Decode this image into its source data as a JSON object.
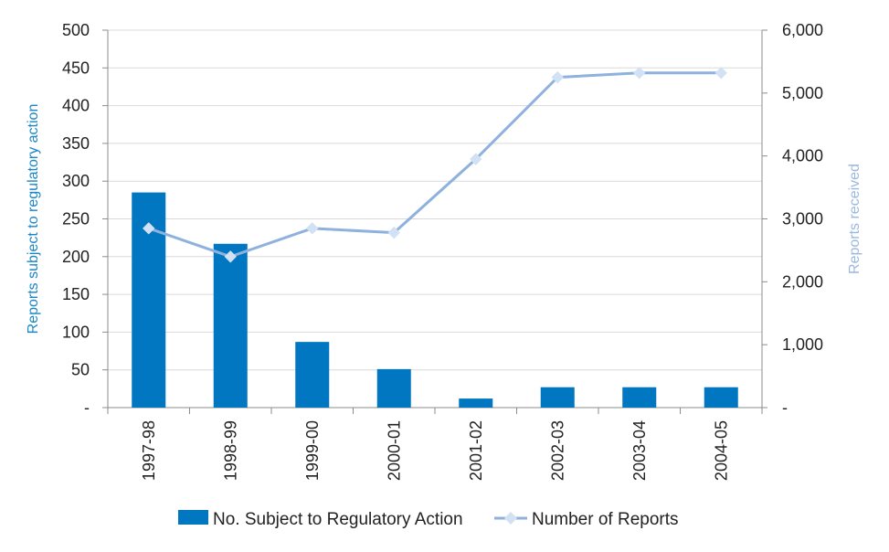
{
  "chart_data": {
    "type": "bar",
    "categories": [
      "1997-98",
      "1998-99",
      "1999-00",
      "2000-01",
      "2001-02",
      "2002-03",
      "2003-04",
      "2004-05"
    ],
    "series": [
      {
        "name": "No. Subject to Regulatory Action",
        "type": "bar",
        "axis": "left",
        "color": "#0077c0",
        "values": [
          285,
          217,
          87,
          51,
          12,
          27,
          27,
          27
        ]
      },
      {
        "name": "Number of Reports",
        "type": "line",
        "axis": "right",
        "color": "#8eb2dd",
        "marker_color": "#d3e1f4",
        "values": [
          2850,
          2400,
          2850,
          2780,
          3950,
          5250,
          5320,
          5320
        ]
      }
    ],
    "ylabel": "Reports subject to regulatory action",
    "ylabel_color": "#1a86c7",
    "ylim": [
      0,
      500
    ],
    "yticks": [
      {
        "value": 0,
        "label": "-"
      },
      {
        "value": 50,
        "label": "50"
      },
      {
        "value": 100,
        "label": "100"
      },
      {
        "value": 150,
        "label": "150"
      },
      {
        "value": 200,
        "label": "200"
      },
      {
        "value": 250,
        "label": "250"
      },
      {
        "value": 300,
        "label": "300"
      },
      {
        "value": 350,
        "label": "350"
      },
      {
        "value": 400,
        "label": "400"
      },
      {
        "value": 450,
        "label": "450"
      },
      {
        "value": 500,
        "label": "500"
      }
    ],
    "y2label": "Reports received",
    "y2label_color": "#9bb8de",
    "y2lim": [
      0,
      6000
    ],
    "y2ticks": [
      {
        "value": 0,
        "label": "-"
      },
      {
        "value": 1000,
        "label": "1,000"
      },
      {
        "value": 2000,
        "label": "2,000"
      },
      {
        "value": 3000,
        "label": "3,000"
      },
      {
        "value": 4000,
        "label": "4,000"
      },
      {
        "value": 5000,
        "label": "5,000"
      },
      {
        "value": 6000,
        "label": "6,000"
      }
    ],
    "grid": true,
    "legend": "bottom"
  }
}
